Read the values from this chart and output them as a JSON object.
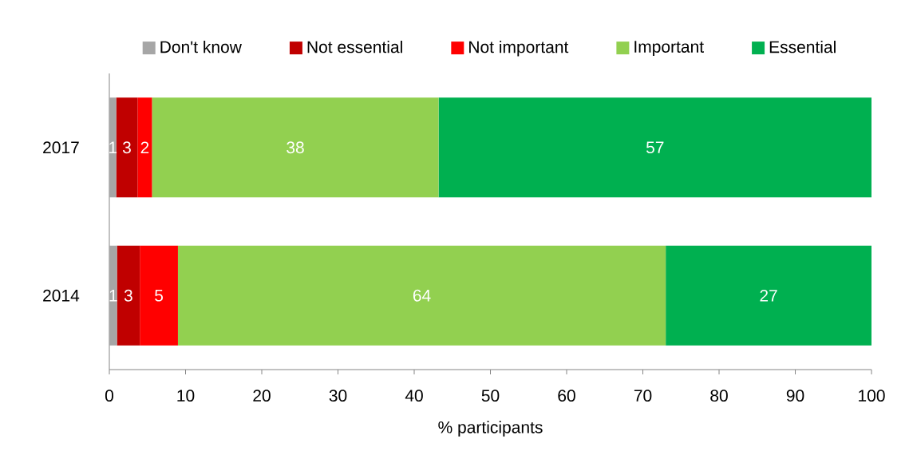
{
  "chart_data": {
    "type": "bar",
    "orientation": "horizontal",
    "stacked": true,
    "xlabel": "% participants",
    "categories": [
      "2017",
      "2014"
    ],
    "series": [
      {
        "name": "Don't know",
        "color": "#a6a6a6",
        "values": [
          0.9,
          1.0
        ],
        "value_labels": [
          "1",
          "1"
        ]
      },
      {
        "name": "Not essential",
        "color": "#c00000",
        "values": [
          2.8,
          3.0
        ],
        "value_labels": [
          "3",
          "3"
        ]
      },
      {
        "name": "Not important",
        "color": "#ff0000",
        "values": [
          1.9,
          5.0
        ],
        "value_labels": [
          "2",
          "5"
        ]
      },
      {
        "name": "Important",
        "color": "#92d050",
        "values": [
          37.6,
          64.0
        ],
        "value_labels": [
          "38",
          "64"
        ]
      },
      {
        "name": "Essential",
        "color": "#00b050",
        "values": [
          56.8,
          27.0
        ],
        "value_labels": [
          "57",
          "27"
        ]
      }
    ],
    "xlim": [
      0,
      100
    ],
    "xticks": [
      0,
      10,
      20,
      30,
      40,
      50,
      60,
      70,
      80,
      90,
      100
    ],
    "legend": "top"
  }
}
